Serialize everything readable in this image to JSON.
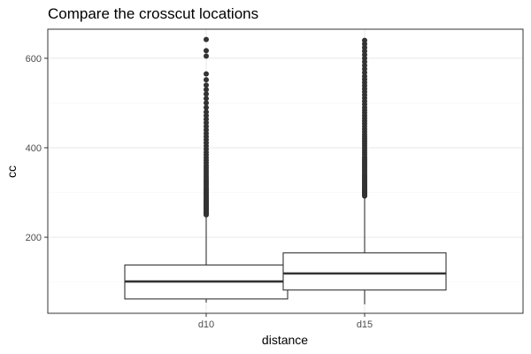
{
  "chart_data": {
    "type": "boxplot",
    "title": "Compare the crosscut locations",
    "xlabel": "distance",
    "ylabel": "cc",
    "categories": [
      "d10",
      "d15"
    ],
    "ylim": [
      30,
      665
    ],
    "yticks": [
      200,
      400,
      600
    ],
    "grid": true,
    "colors": {
      "box_stroke": "#333333",
      "grid_major": "#ebebeb",
      "grid_minor": "#f4f4f4",
      "panel_border": "#333333"
    },
    "boxes": [
      {
        "category": "d10",
        "whisker_low": 54,
        "q1": 62,
        "median": 101,
        "q3": 138,
        "whisker_high": 248,
        "outliers": [
          250,
          252,
          254,
          256,
          258,
          260,
          262,
          264,
          266,
          268,
          270,
          272,
          274,
          276,
          278,
          280,
          283,
          286,
          289,
          292,
          295,
          298,
          301,
          304,
          307,
          310,
          314,
          318,
          322,
          326,
          330,
          335,
          340,
          345,
          350,
          355,
          360,
          366,
          372,
          378,
          384,
          390,
          397,
          404,
          411,
          418,
          425,
          432,
          440,
          448,
          456,
          464,
          472,
          480,
          490,
          500,
          510,
          520,
          530,
          540,
          552,
          565,
          605,
          617,
          642
        ]
      },
      {
        "category": "d15",
        "whisker_low": 50,
        "q1": 82,
        "median": 119,
        "q3": 165,
        "whisker_high": 290,
        "outliers": [
          292,
          294,
          296,
          298,
          300,
          302,
          304,
          306,
          308,
          310,
          313,
          316,
          319,
          322,
          325,
          328,
          331,
          334,
          337,
          340,
          344,
          348,
          352,
          356,
          360,
          364,
          368,
          372,
          376,
          380,
          385,
          390,
          395,
          400,
          405,
          410,
          415,
          420,
          425,
          430,
          436,
          442,
          448,
          454,
          460,
          466,
          472,
          478,
          484,
          490,
          497,
          504,
          511,
          518,
          525,
          532,
          539,
          546,
          553,
          560,
          568,
          576,
          584,
          592,
          600,
          608,
          616,
          624,
          632,
          640
        ]
      }
    ]
  }
}
